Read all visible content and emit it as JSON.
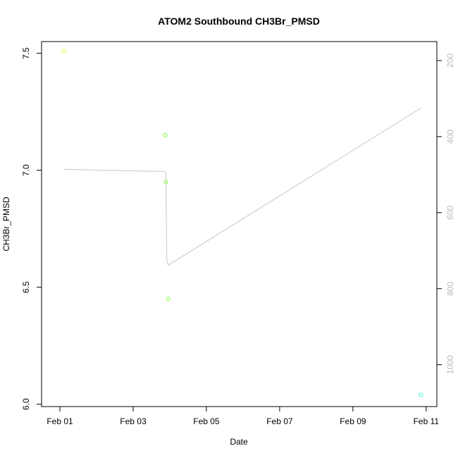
{
  "chart_data": {
    "type": "scatter",
    "title": "ATOM2 Southbound CH3Br_PMSD",
    "xlabel": "Date",
    "ylabel": "CH3Br_PMSD",
    "xlim": [
      "2016-01-31T12:00",
      "2016-02-11T07:00"
    ],
    "ylim": [
      5.99,
      7.55
    ],
    "x_ticks": [
      {
        "value": "2016-02-01",
        "label": "Feb 01"
      },
      {
        "value": "2016-02-03",
        "label": "Feb 03"
      },
      {
        "value": "2016-02-05",
        "label": "Feb 05"
      },
      {
        "value": "2016-02-07",
        "label": "Feb 07"
      },
      {
        "value": "2016-02-09",
        "label": "Feb 09"
      },
      {
        "value": "2016-02-11",
        "label": "Feb 11"
      }
    ],
    "y_ticks": [
      6.0,
      6.5,
      7.0,
      7.5
    ],
    "y_tick_labels": [
      "6.0",
      "6.5",
      "7.0",
      "7.5"
    ],
    "right_axis": {
      "ticks": [
        200,
        400,
        600,
        800,
        1000
      ],
      "tick_labels": [
        "200",
        "400",
        "600",
        "800",
        "1000"
      ],
      "inverted": true,
      "lim": [
        1110,
        150
      ],
      "color": "#bbbbbb"
    },
    "points": [
      {
        "x": "2016-02-01T02:30",
        "y": 7.51,
        "color": "#dfff3f"
      },
      {
        "x": "2016-02-03T21:00",
        "y": 7.15,
        "color": "#7fff3f"
      },
      {
        "x": "2016-02-03T21:30",
        "y": 6.95,
        "color": "#7fff3f"
      },
      {
        "x": "2016-02-03T23:00",
        "y": 6.45,
        "color": "#7fff3f"
      },
      {
        "x": "2016-02-10T20:30",
        "y": 6.04,
        "color": "#3fffdf"
      }
    ],
    "line": {
      "axis": "right",
      "color": "#c8c8c8",
      "points": [
        {
          "x": "2016-02-01T02:30",
          "y": 486
        },
        {
          "x": "2016-02-03T21:00",
          "y": 492
        },
        {
          "x": "2016-02-03T21:30",
          "y": 495
        },
        {
          "x": "2016-02-03T22:00",
          "y": 725
        },
        {
          "x": "2016-02-03T23:00",
          "y": 738
        },
        {
          "x": "2016-02-10T20:30",
          "y": 325
        }
      ]
    },
    "grid": false
  }
}
